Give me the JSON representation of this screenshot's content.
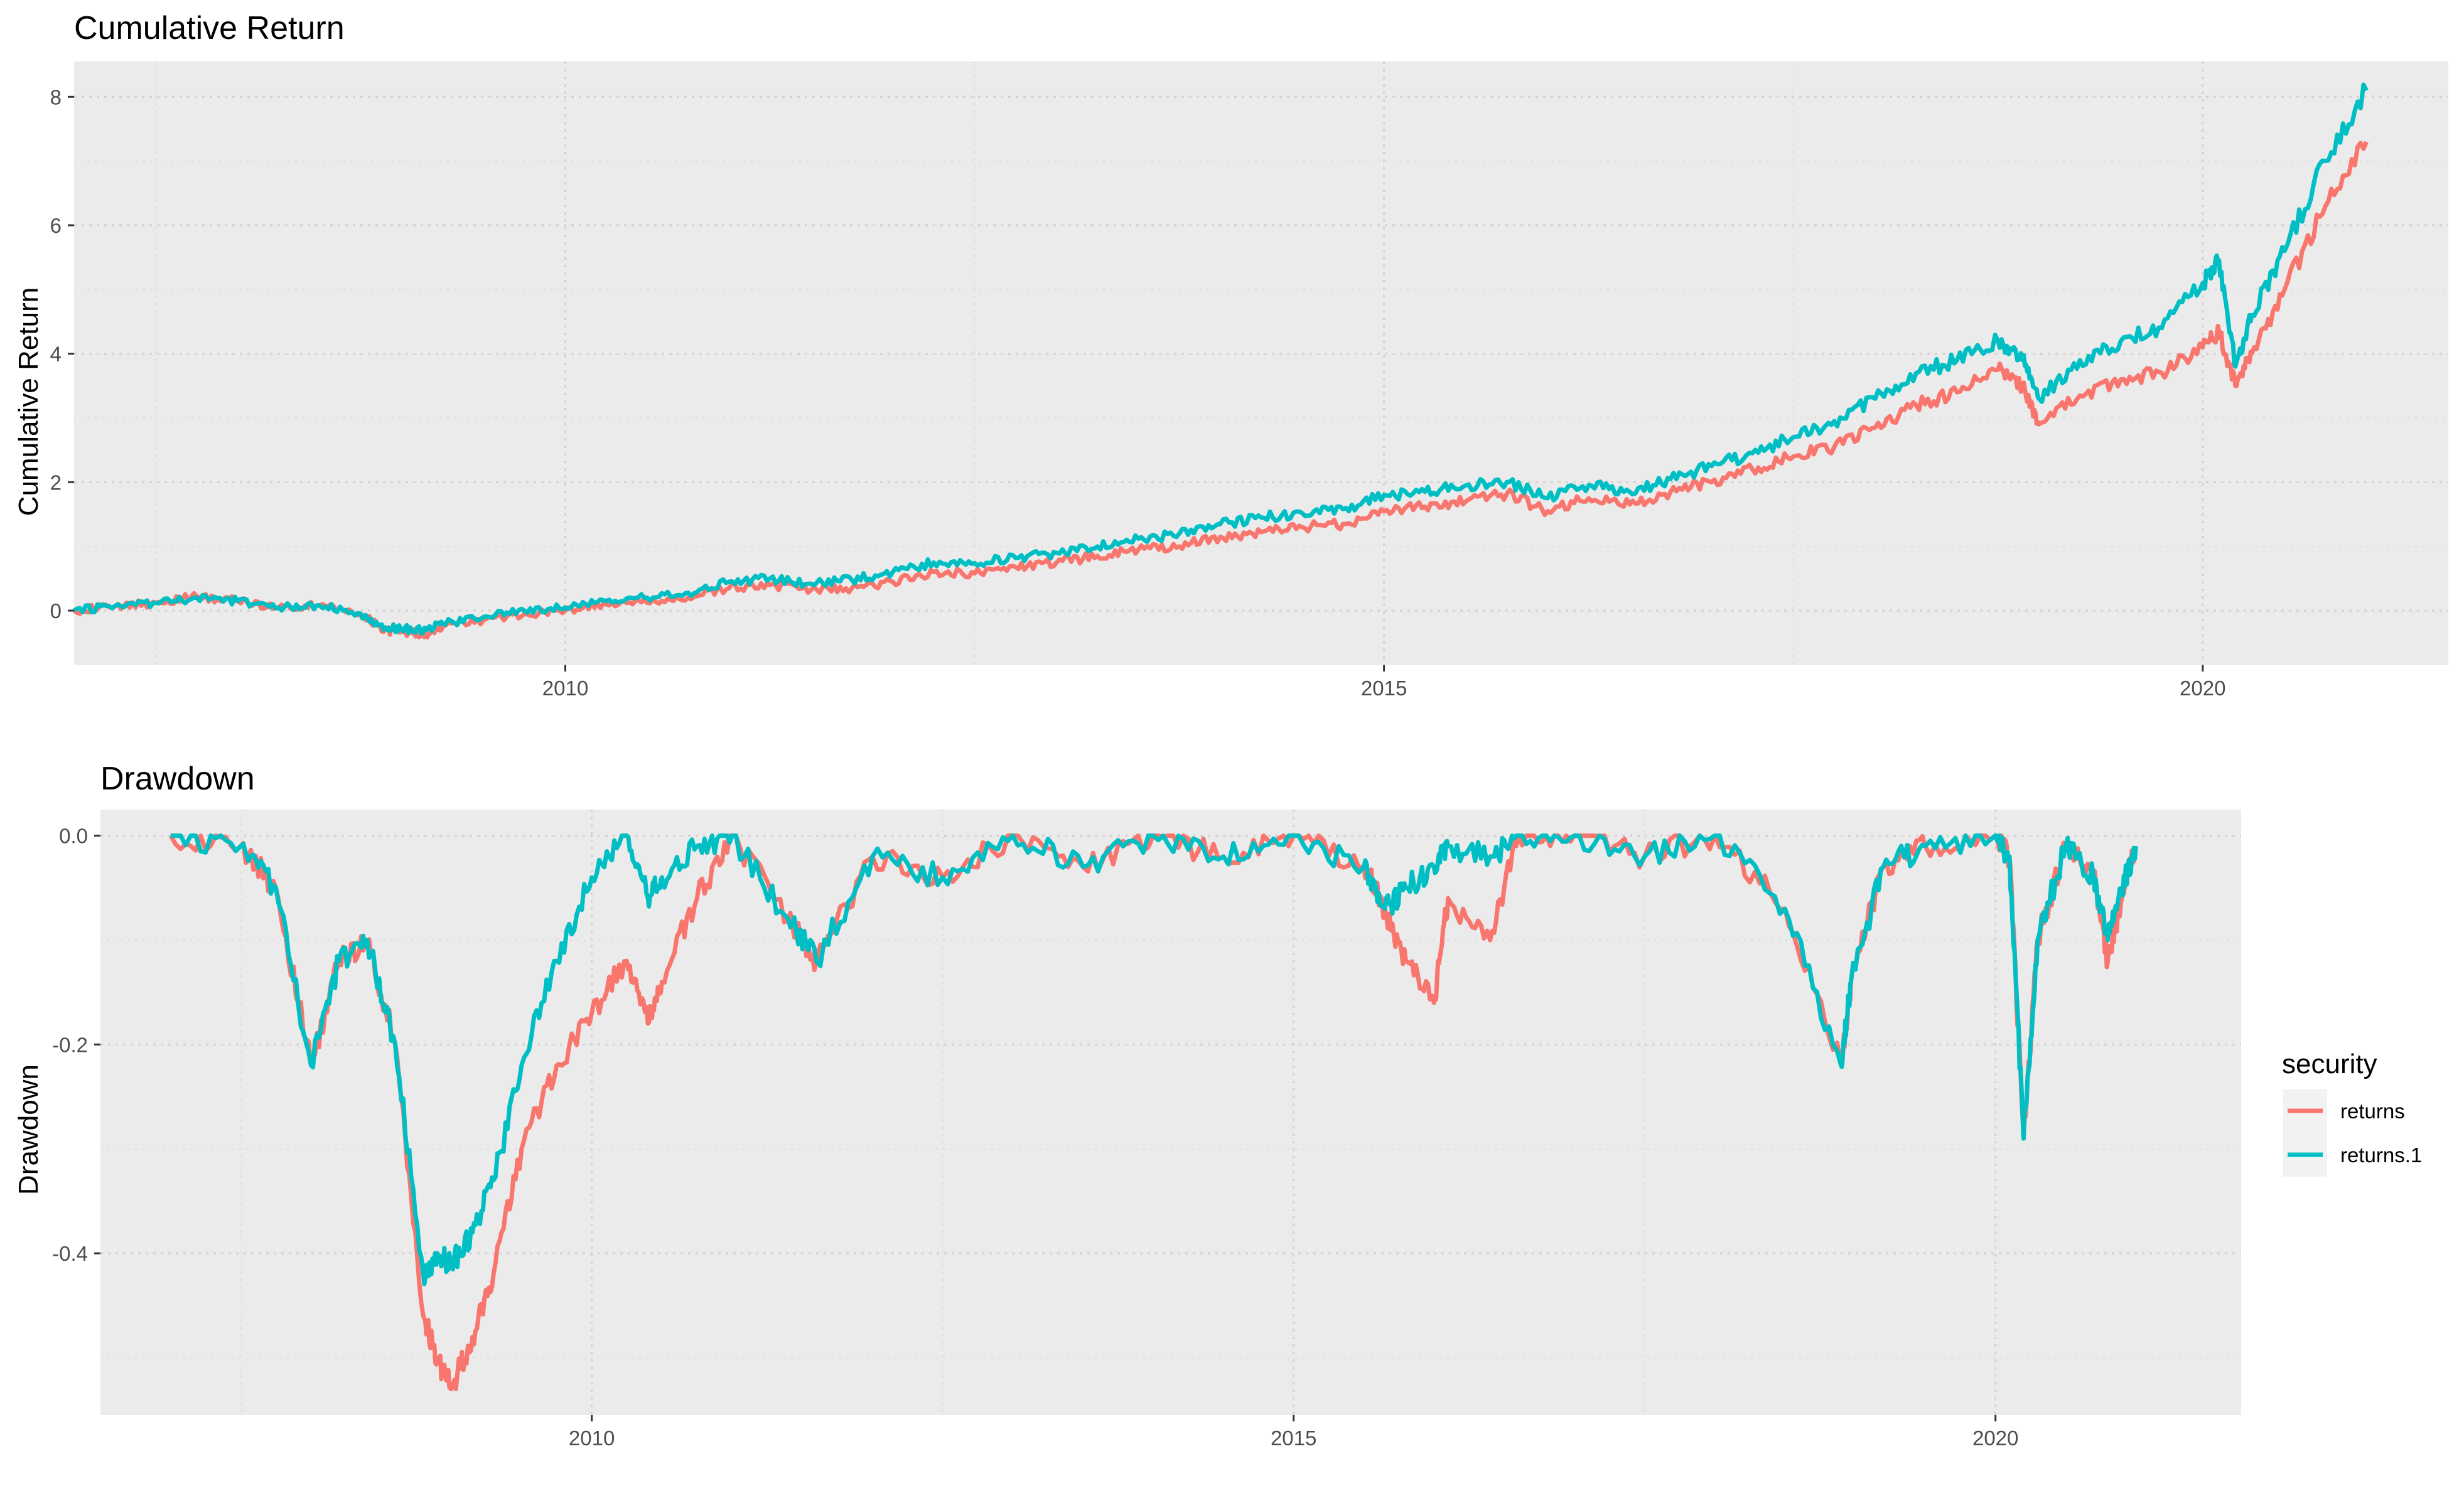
{
  "chart_data": [
    {
      "type": "line",
      "title": "Cumulative Return",
      "xlabel": "",
      "ylabel": "Cumulative Return",
      "xlim": [
        2007.0,
        2021.5
      ],
      "ylim": [
        -0.85,
        8.55
      ],
      "x_ticks": [
        2010,
        2015,
        2020
      ],
      "x_tick_labels": [
        "2010",
        "2015",
        "2020"
      ],
      "y_ticks": [
        0,
        2,
        4,
        6,
        8
      ],
      "y_tick_labels": [
        "0",
        "2",
        "4",
        "6",
        "8"
      ],
      "grid": true,
      "x": [
        2007.0,
        2007.25,
        2007.5,
        2007.75,
        2008.0,
        2008.25,
        2008.5,
        2008.75,
        2008.9,
        2009.0,
        2009.15,
        2009.25,
        2009.5,
        2009.75,
        2010.0,
        2010.25,
        2010.5,
        2010.75,
        2011.0,
        2011.25,
        2011.5,
        2011.75,
        2012.0,
        2012.25,
        2012.5,
        2012.75,
        2013.0,
        2013.25,
        2013.5,
        2013.75,
        2014.0,
        2014.25,
        2014.5,
        2014.75,
        2015.0,
        2015.25,
        2015.5,
        2015.75,
        2016.0,
        2016.25,
        2016.5,
        2016.75,
        2017.0,
        2017.25,
        2017.5,
        2017.75,
        2018.0,
        2018.25,
        2018.5,
        2018.75,
        2018.9,
        2019.0,
        2019.25,
        2019.5,
        2019.75,
        2020.0,
        2020.1,
        2020.2,
        2020.3,
        2020.5,
        2020.75,
        2021.0
      ],
      "series": [
        {
          "name": "returns",
          "color": "#F8766D",
          "values": [
            0.0,
            0.07,
            0.12,
            0.22,
            0.15,
            0.05,
            0.08,
            -0.05,
            -0.3,
            -0.33,
            -0.36,
            -0.25,
            -0.15,
            -0.05,
            0.0,
            0.1,
            0.12,
            0.2,
            0.35,
            0.4,
            0.32,
            0.35,
            0.45,
            0.6,
            0.58,
            0.68,
            0.75,
            0.85,
            0.95,
            1.0,
            1.15,
            1.22,
            1.3,
            1.35,
            1.55,
            1.62,
            1.7,
            1.82,
            1.55,
            1.75,
            1.65,
            1.85,
            2.0,
            2.2,
            2.4,
            2.55,
            2.85,
            3.2,
            3.4,
            3.75,
            3.5,
            2.9,
            3.35,
            3.6,
            3.7,
            4.1,
            4.35,
            3.5,
            4.0,
            5.0,
            6.3,
            7.3
          ]
        },
        {
          "name": "returns.1",
          "color": "#00BFC4",
          "values": [
            0.0,
            0.07,
            0.12,
            0.2,
            0.15,
            0.05,
            0.08,
            -0.05,
            -0.26,
            -0.28,
            -0.3,
            -0.2,
            -0.1,
            0.0,
            0.05,
            0.15,
            0.2,
            0.28,
            0.45,
            0.5,
            0.42,
            0.48,
            0.6,
            0.75,
            0.74,
            0.82,
            0.9,
            1.0,
            1.12,
            1.2,
            1.35,
            1.45,
            1.52,
            1.58,
            1.8,
            1.85,
            1.95,
            2.0,
            1.75,
            1.95,
            1.85,
            2.05,
            2.25,
            2.45,
            2.7,
            2.95,
            3.3,
            3.7,
            3.9,
            4.2,
            3.9,
            3.3,
            3.9,
            4.2,
            4.4,
            5.1,
            5.45,
            3.8,
            4.6,
            5.6,
            7.0,
            8.1
          ]
        }
      ]
    },
    {
      "type": "line",
      "title": "Drawdown",
      "xlabel": "",
      "ylabel": "Drawdown",
      "xlim": [
        2006.5,
        2021.75
      ],
      "ylim": [
        -0.555,
        0.025
      ],
      "x_ticks": [
        2010,
        2015,
        2020
      ],
      "x_tick_labels": [
        "2010",
        "2015",
        "2020"
      ],
      "y_ticks": [
        0.0,
        -0.2,
        -0.4
      ],
      "y_tick_labels": [
        "0.0",
        "-0.2",
        "-0.4"
      ],
      "grid": true,
      "legend": {
        "title": "security",
        "position": "right"
      },
      "x": [
        2007.0,
        2007.5,
        2007.75,
        2008.0,
        2008.2,
        2008.4,
        2008.6,
        2008.8,
        2008.9,
        2009.0,
        2009.15,
        2009.3,
        2009.5,
        2009.75,
        2010.0,
        2010.25,
        2010.4,
        2010.5,
        2010.75,
        2011.0,
        2011.4,
        2011.6,
        2012.0,
        2012.5,
        2013.0,
        2013.5,
        2014.0,
        2014.5,
        2015.0,
        2015.5,
        2015.65,
        2015.8,
        2016.0,
        2016.1,
        2016.4,
        2016.6,
        2017.0,
        2017.5,
        2018.0,
        2018.5,
        2018.9,
        2018.97,
        2019.2,
        2019.5,
        2020.0,
        2020.1,
        2020.2,
        2020.3,
        2020.5,
        2020.7,
        2020.8,
        2020.9,
        2021.0
      ],
      "series": [
        {
          "name": "returns",
          "color": "#F8766D",
          "values": [
            0.0,
            -0.01,
            -0.05,
            -0.22,
            -0.12,
            -0.1,
            -0.2,
            -0.46,
            -0.5,
            -0.53,
            -0.48,
            -0.42,
            -0.3,
            -0.22,
            -0.17,
            -0.12,
            -0.18,
            -0.14,
            -0.06,
            0.0,
            -0.08,
            -0.12,
            -0.02,
            -0.04,
            0.0,
            -0.03,
            0.0,
            -0.02,
            0.0,
            -0.03,
            -0.07,
            -0.12,
            -0.16,
            -0.06,
            -0.1,
            0.0,
            0.0,
            -0.02,
            0.0,
            -0.07,
            -0.22,
            -0.14,
            -0.03,
            -0.01,
            0.0,
            -0.02,
            -0.29,
            -0.1,
            -0.01,
            -0.04,
            -0.12,
            -0.06,
            -0.01
          ]
        },
        {
          "name": "returns.1",
          "color": "#00BFC4",
          "values": [
            0.0,
            -0.01,
            -0.05,
            -0.22,
            -0.12,
            -0.1,
            -0.2,
            -0.42,
            -0.4,
            -0.41,
            -0.38,
            -0.33,
            -0.22,
            -0.12,
            -0.04,
            0.0,
            -0.06,
            -0.04,
            -0.01,
            0.0,
            -0.08,
            -0.12,
            -0.02,
            -0.04,
            0.0,
            -0.03,
            0.0,
            -0.02,
            0.0,
            -0.03,
            -0.07,
            -0.05,
            -0.03,
            -0.01,
            -0.02,
            0.0,
            0.0,
            -0.02,
            0.0,
            -0.07,
            -0.22,
            -0.14,
            -0.03,
            -0.01,
            0.0,
            -0.02,
            -0.29,
            -0.1,
            -0.01,
            -0.04,
            -0.1,
            -0.05,
            -0.01
          ]
        }
      ]
    }
  ]
}
